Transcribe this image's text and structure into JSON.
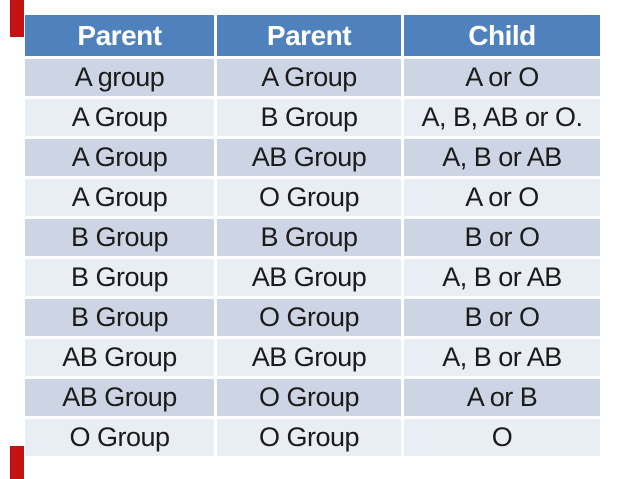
{
  "page": {
    "background": "#FFFFFF",
    "description_title": "Blood group inheritance table"
  },
  "colors": {
    "header_bg": "#4F81BD",
    "header_text": "#FFFFFF",
    "row_dark": "#CDD4E4",
    "row_light": "#E9EDF4",
    "cell_text": "#1B1B1B",
    "accent_red": "#C41114"
  },
  "table": {
    "columns": [
      "Parent",
      "Parent",
      "Child"
    ],
    "rows": [
      [
        "A group",
        "A Group",
        "A or O"
      ],
      [
        "A Group",
        "B Group",
        "A, B, AB or O."
      ],
      [
        "A Group",
        "AB Group",
        "A, B or AB"
      ],
      [
        "A Group",
        "O Group",
        "A or O"
      ],
      [
        "B Group",
        "B Group",
        "B or O"
      ],
      [
        "B Group",
        "AB Group",
        "A, B or AB"
      ],
      [
        "B Group",
        "O Group",
        "B or O"
      ],
      [
        "AB Group",
        "AB Group",
        "A, B or AB"
      ],
      [
        "AB Group",
        "O Group",
        "A or B"
      ],
      [
        "O Group",
        "O Group",
        "O"
      ]
    ]
  }
}
